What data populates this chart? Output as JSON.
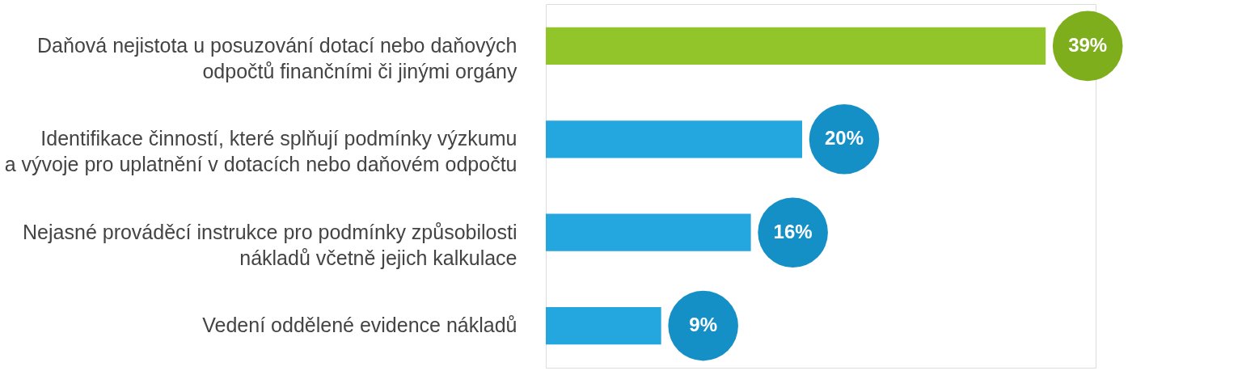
{
  "chart_data": {
    "type": "bar",
    "orientation": "horizontal",
    "categories": [
      "Daňová nejistota u posuzování dotací nebo daňových odpočtů finančními či jinými orgány",
      "Identifikace činností, které splňují podmínky výzkumu a vývoje pro uplatnění v dotacích nebo daňovém odpočtu",
      "Nejasné prováděcí instrukce pro podmínky způsobilosti nákladů včetně jejich kalkulace",
      "Vedení oddělené evidence nákladů"
    ],
    "values": [
      39,
      20,
      16,
      9
    ],
    "value_labels": [
      "39%",
      "20%",
      "16%",
      "9%"
    ],
    "colors": [
      "#8cc21f",
      "#18a1dc",
      "#18a1dc",
      "#18a1dc"
    ]
  }
}
